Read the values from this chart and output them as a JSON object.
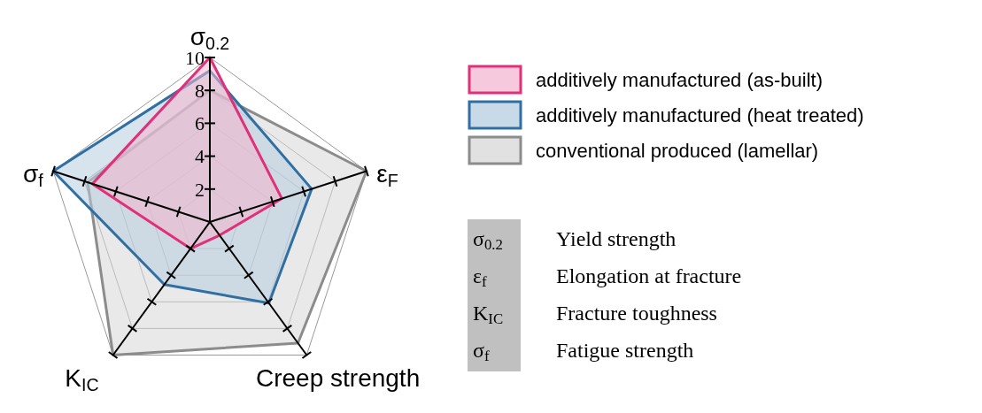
{
  "chart_data": {
    "type": "radar",
    "categories": [
      "σ$_{0.2}$",
      "ε$_{F}$",
      "Creep strength",
      "K$_{IC}$",
      "σ$_{f}$"
    ],
    "series": [
      {
        "name": "additively manufactured (as-built)",
        "color": "#e0307a",
        "values": [
          10,
          4.6,
          1.0,
          2.0,
          7.5
        ]
      },
      {
        "name": "additively manufactured (heat treated)",
        "color": "#2f6fa3",
        "values": [
          9.2,
          6.5,
          6.1,
          4.7,
          10
        ]
      },
      {
        "name": "conventional produced (lamellar)",
        "color": "#8c8c8c",
        "values": [
          8,
          10,
          9.1,
          10,
          7.8
        ]
      }
    ],
    "ylim": [
      0,
      10
    ],
    "yticks": [
      2,
      4,
      6,
      8,
      10
    ],
    "grid": true,
    "legend": "top right",
    "annotations": [
      "σ$_{0.2}$",
      "Yield strength",
      "ε$_{f}$",
      "Elongation at fracture",
      "K$_{IC}$",
      "Fracture toughness",
      "σ$_{f}$",
      "Fatigue strength"
    ]
  }
}
